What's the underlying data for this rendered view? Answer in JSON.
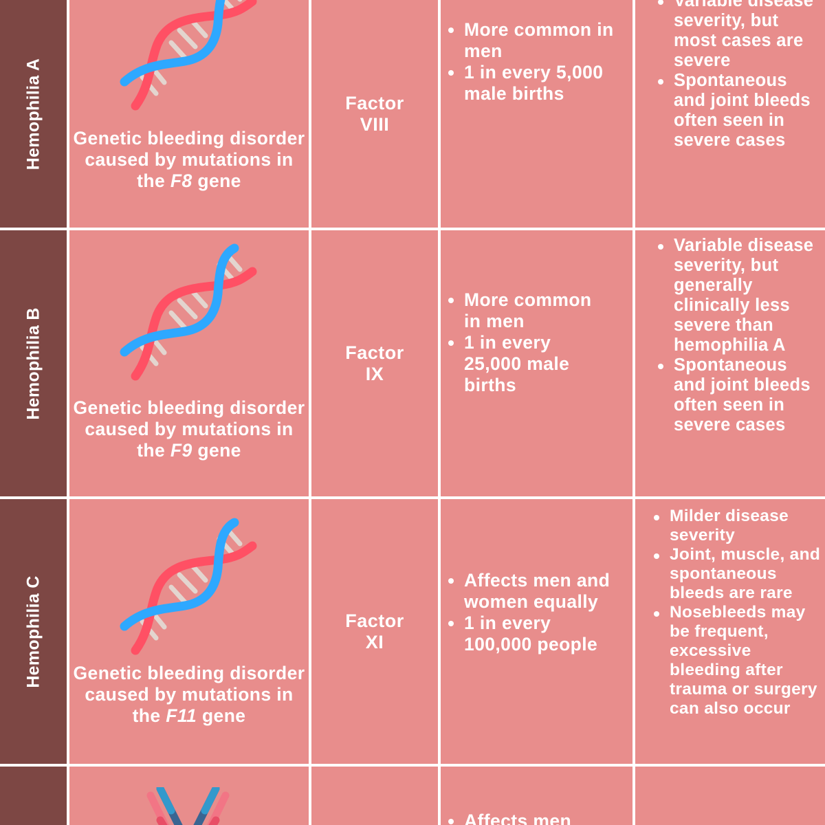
{
  "colors": {
    "cell": "#E88D8C",
    "header": "#7D4744",
    "text": "#FFFFFF",
    "grid": "#FFFFFF",
    "dna_blue": "#2EA8FF",
    "dna_red": "#FF5064"
  },
  "rows": [
    {
      "name": "Hemophilia A",
      "icon": "dna-icon",
      "desc_pre": "Genetic bleeding disorder caused by mutations in the ",
      "gene": "F8",
      "desc_post": " gene",
      "factor_line1": "Factor",
      "factor_line2": "VIII",
      "prevalence": [
        "More common in men",
        "1 in every 5,000 male births"
      ],
      "severity": [
        "Variable disease severity, but most cases are severe",
        "Spontaneous and joint bleeds often seen in severe cases"
      ]
    },
    {
      "name": "Hemophilia B",
      "icon": "dna-icon",
      "desc_pre": "Genetic bleeding disorder caused by mutations in the ",
      "gene": "F9",
      "desc_post": " gene",
      "factor_line1": "Factor",
      "factor_line2": "IX",
      "prevalence": [
        "More common in men",
        "1 in every 25,000 male births"
      ],
      "severity": [
        "Variable disease severity, but generally clinically less severe than hemophilia A",
        "Spontaneous and joint bleeds often seen in severe cases"
      ]
    },
    {
      "name": "Hemophilia C",
      "icon": "dna-icon",
      "desc_pre": "Genetic bleeding disorder caused by mutations in the ",
      "gene": "F11",
      "desc_post": " gene",
      "factor_line1": "Factor",
      "factor_line2": "XI",
      "prevalence": [
        "Affects men and women equally",
        "1 in every 100,000 people"
      ],
      "severity": [
        "Milder disease severity",
        "Joint, muscle, and spontaneous bleeds are rare",
        "Nosebleeds may be frequent, excessive bleeding after trauma or surgery can also occur"
      ]
    },
    {
      "icon": "antibody-icon",
      "prevalence": [
        "Affects men"
      ]
    }
  ]
}
